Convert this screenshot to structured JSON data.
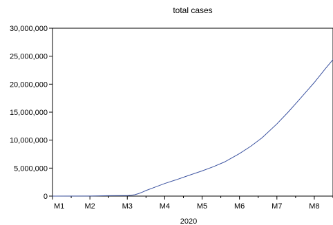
{
  "chart_data": {
    "type": "line",
    "title": "total cases",
    "xlabel": "2020",
    "ylabel": "",
    "ylim": [
      0,
      30000000
    ],
    "yticks": [
      0,
      5000000,
      10000000,
      15000000,
      20000000,
      25000000,
      30000000
    ],
    "ytick_labels": [
      "0",
      "5,000,000",
      "10,000,000",
      "15,000,000",
      "20,000,000",
      "25,000,000",
      "30,000,000"
    ],
    "xlim": [
      1,
      8.5
    ],
    "xticks": [
      {
        "label": "M1",
        "month": 1
      },
      {
        "label": "M2",
        "month": 2
      },
      {
        "label": "M3",
        "month": 3
      },
      {
        "label": "M4",
        "month": 4
      },
      {
        "label": "M5",
        "month": 5
      },
      {
        "label": "M6",
        "month": 6
      },
      {
        "label": "M7",
        "month": 7
      },
      {
        "label": "M8",
        "month": 8
      }
    ],
    "grid": false,
    "line_color": "#3b52a0",
    "series": [
      {
        "x": [
          1.0,
          2.0,
          2.5,
          2.9,
          3.0,
          3.1,
          3.2,
          3.3,
          3.4,
          3.5,
          3.7,
          4.0,
          4.3,
          4.6,
          5.0,
          5.3,
          5.6,
          6.0,
          6.3,
          6.6,
          7.0,
          7.3,
          7.6,
          8.0,
          8.3,
          8.5
        ],
        "y": [
          0,
          10000,
          80000,
          90000,
          100000,
          150000,
          250000,
          450000,
          700000,
          1000000,
          1500000,
          2250000,
          2900000,
          3600000,
          4500000,
          5250000,
          6100000,
          7600000,
          8900000,
          10400000,
          12900000,
          15000000,
          17250000,
          20300000,
          22800000,
          24400000
        ]
      }
    ]
  }
}
